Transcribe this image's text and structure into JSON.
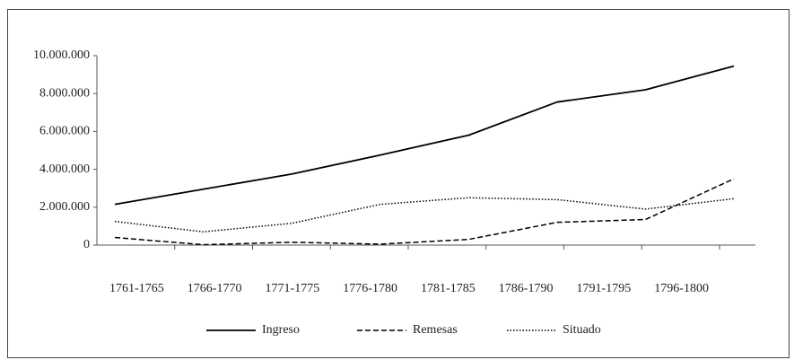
{
  "chart_data": {
    "type": "line",
    "categories": [
      "1761-1765",
      "1766-1770",
      "1771-1775",
      "1776-1780",
      "1781-1785",
      "1786-1790",
      "1791-1795",
      "1796-1800"
    ],
    "series": [
      {
        "name": "Ingreso",
        "color": "#000000",
        "style": "solid",
        "values": [
          2150000,
          2950000,
          3750000,
          4750000,
          5800000,
          7550000,
          8200000,
          9450000
        ]
      },
      {
        "name": "Remesas",
        "color": "#000000",
        "style": "dashed",
        "values": [
          400000,
          20000,
          150000,
          50000,
          300000,
          1200000,
          1350000,
          3500000
        ]
      },
      {
        "name": "Situado",
        "color": "#000000",
        "style": "dotted",
        "values": [
          1250000,
          700000,
          1150000,
          2150000,
          2500000,
          2400000,
          1900000,
          2450000
        ]
      }
    ],
    "ylim": [
      0,
      10000000
    ],
    "yticks": [
      0,
      {
        "value": 2000000,
        "label": "2.000.000"
      },
      {
        "value": 4000000,
        "label": "4.000.000"
      },
      {
        "value": 6000000,
        "label": "6.000.000"
      },
      {
        "value": 8000000,
        "label": "8.000.000"
      },
      {
        "value": 10000000,
        "label": "10.000.000"
      }
    ],
    "grid": false,
    "legend": "bottom"
  }
}
